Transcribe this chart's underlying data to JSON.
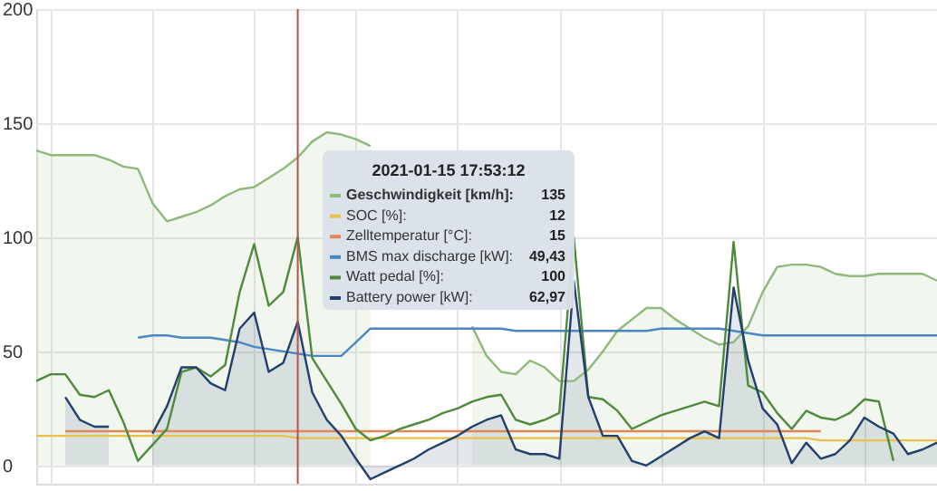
{
  "chart_data": {
    "type": "line",
    "categories": [
      null,
      null,
      null,
      null,
      null,
      null,
      null,
      null,
      null,
      null,
      null,
      null,
      null,
      null,
      null,
      null,
      null,
      null,
      null,
      null,
      null,
      null,
      null,
      null,
      null,
      null,
      null,
      null,
      null,
      null,
      null,
      null,
      null,
      null,
      null,
      null,
      null,
      null,
      null,
      null,
      null,
      null,
      null,
      null,
      null,
      null,
      null,
      null,
      null,
      null,
      null,
      null,
      null,
      null,
      null,
      null,
      null,
      null,
      null,
      null,
      null,
      null,
      null
    ],
    "series": [
      {
        "name": "Geschwindigkeit [km/h]:",
        "type": "area",
        "color": "#8fb87a",
        "values": [
          138,
          136,
          136,
          136,
          136,
          134,
          131,
          130,
          115,
          107,
          109,
          111,
          114,
          118,
          121,
          122,
          126,
          130,
          135,
          142,
          146,
          145,
          143,
          140,
          null,
          null,
          null,
          null,
          null,
          null,
          61,
          48,
          41,
          40,
          46,
          43,
          37,
          37,
          42,
          50,
          59,
          64,
          69,
          69,
          64,
          60,
          56,
          53,
          54,
          61,
          76,
          87,
          88,
          88,
          87,
          84,
          83,
          83,
          84,
          84,
          84,
          84,
          81
        ]
      },
      {
        "name": "SOC [%]:",
        "color": "#e8c04a",
        "values": [
          13,
          13,
          13,
          13,
          13,
          13,
          13,
          13,
          13,
          13,
          13,
          13,
          13,
          13,
          13,
          13,
          13,
          13,
          12,
          12,
          12,
          12,
          12,
          12,
          12,
          12,
          12,
          12,
          12,
          12,
          12,
          12,
          12,
          12,
          12,
          12,
          12,
          12,
          12,
          12,
          12,
          12,
          12,
          12,
          12,
          12,
          12,
          12,
          12,
          12,
          12,
          12,
          12,
          12,
          11,
          11,
          11,
          11,
          11,
          11,
          11,
          11,
          11
        ]
      },
      {
        "name": "Zelltemperatur [°C]:",
        "color": "#e0875a",
        "values": [
          null,
          null,
          15,
          15,
          15,
          15,
          15,
          15,
          15,
          15,
          15,
          15,
          15,
          15,
          15,
          15,
          15,
          15,
          15,
          15,
          15,
          15,
          15,
          15,
          15,
          15,
          15,
          15,
          15,
          15,
          15,
          15,
          15,
          15,
          15,
          15,
          15,
          15,
          15,
          15,
          15,
          15,
          15,
          15,
          15,
          15,
          15,
          15,
          15,
          15,
          15,
          15,
          15,
          15,
          15,
          null,
          null,
          null,
          null,
          null,
          null,
          null,
          null
        ]
      },
      {
        "name": "BMS max discharge [kW]:",
        "color": "#4a86c0",
        "values": [
          null,
          null,
          null,
          null,
          null,
          null,
          null,
          56,
          57,
          57,
          56,
          56,
          56,
          55,
          54,
          52,
          51,
          50,
          49,
          48,
          48,
          48,
          54,
          60,
          60,
          60,
          60,
          60,
          60,
          60,
          60,
          60,
          60,
          59,
          59,
          59,
          59,
          59,
          59,
          59,
          59,
          59,
          59,
          60,
          60,
          60,
          60,
          60,
          59,
          58,
          57,
          57,
          57,
          57,
          57,
          57,
          57,
          57,
          57,
          57,
          57,
          57,
          57
        ]
      },
      {
        "name": "Watt pedal [%]:",
        "color": "#4f8a3c",
        "values": [
          37,
          40,
          40,
          31,
          30,
          33,
          19,
          2,
          9,
          16,
          41,
          43,
          39,
          44,
          76,
          97,
          70,
          76,
          100,
          47,
          37,
          27,
          16,
          11,
          13,
          16,
          18,
          20,
          23,
          25,
          28,
          30,
          31,
          20,
          18,
          20,
          23,
          100,
          30,
          29,
          24,
          16,
          19,
          22,
          24,
          26,
          28,
          26,
          98,
          35,
          32,
          23,
          16,
          24,
          21,
          20,
          23,
          29,
          28,
          2,
          null,
          null,
          null
        ]
      },
      {
        "name": "Battery power [kW]:",
        "type": "area",
        "color": "#233f6b",
        "values": [
          null,
          null,
          30,
          20,
          17,
          17,
          null,
          null,
          14,
          26,
          43,
          43,
          36,
          33,
          60,
          67,
          41,
          45,
          63,
          32,
          20,
          13,
          3,
          -6,
          -3,
          0,
          3,
          7,
          10,
          13,
          17,
          20,
          22,
          7,
          5,
          5,
          3,
          81,
          30,
          13,
          13,
          2,
          0,
          4,
          8,
          12,
          15,
          12,
          78,
          46,
          25,
          18,
          1,
          10,
          3,
          5,
          11,
          21,
          17,
          14,
          5,
          7,
          10
        ]
      }
    ],
    "ylim": [
      -8,
      200
    ],
    "yticks": [
      0,
      50,
      100,
      150,
      200
    ],
    "grid": true,
    "legend": "left",
    "annotations": [
      "2021-01-15 17:53:12",
      "135",
      "12",
      "15",
      "49,43",
      "100",
      "62,97"
    ]
  }
}
